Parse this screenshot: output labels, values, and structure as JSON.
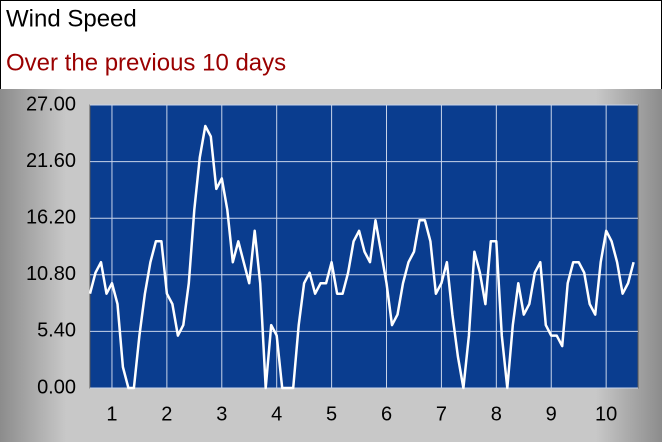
{
  "chart_data": {
    "type": "line",
    "title": "Wind Speed",
    "subtitle": "Over the previous 10 days",
    "x": [
      0.6,
      0.7,
      0.8,
      0.9,
      1.0,
      1.1,
      1.2,
      1.3,
      1.4,
      1.5,
      1.6,
      1.7,
      1.8,
      1.9,
      2.0,
      2.1,
      2.2,
      2.3,
      2.4,
      2.5,
      2.6,
      2.7,
      2.8,
      2.9,
      3.0,
      3.1,
      3.2,
      3.3,
      3.4,
      3.5,
      3.6,
      3.7,
      3.8,
      3.9,
      4.0,
      4.1,
      4.2,
      4.3,
      4.4,
      4.5,
      4.6,
      4.7,
      4.8,
      4.9,
      5.0,
      5.1,
      5.2,
      5.3,
      5.4,
      5.5,
      5.6,
      5.7,
      5.8,
      5.9,
      6.0,
      6.1,
      6.2,
      6.3,
      6.4,
      6.5,
      6.6,
      6.7,
      6.8,
      6.9,
      7.0,
      7.1,
      7.2,
      7.3,
      7.4,
      7.5,
      7.6,
      7.7,
      7.8,
      7.9,
      8.0,
      8.1,
      8.2,
      8.3,
      8.4,
      8.5,
      8.6,
      8.7,
      8.8,
      8.9,
      9.0,
      9.1,
      9.2,
      9.3,
      9.4,
      9.5,
      9.6,
      9.7,
      9.8,
      9.9,
      10.0,
      10.1,
      10.2,
      10.3,
      10.4,
      10.5
    ],
    "series": [
      {
        "color": "#ffffff",
        "values": [
          9,
          11,
          12,
          9,
          10,
          8,
          2,
          0,
          0,
          5,
          9,
          12,
          14,
          14,
          9,
          8,
          5,
          6,
          10,
          17,
          22,
          25,
          24,
          19,
          20,
          17,
          12,
          14,
          12,
          10,
          15,
          10,
          0,
          6,
          5,
          0,
          0,
          0,
          6,
          10,
          11,
          9,
          10,
          10,
          12,
          9,
          9,
          11,
          14,
          15,
          13,
          12,
          16,
          13,
          10,
          6,
          7,
          10,
          12,
          13,
          16,
          16,
          14,
          9,
          10,
          12,
          7,
          3,
          0,
          5,
          13,
          11,
          8,
          14,
          14,
          5,
          0,
          6,
          10,
          7,
          8,
          11,
          12,
          6,
          5,
          5,
          4,
          10,
          12,
          12,
          11,
          8,
          7,
          12,
          15,
          14,
          12,
          9,
          10,
          12
        ]
      }
    ],
    "xlim": [
      0.6,
      10.58
    ],
    "xticks": [
      1,
      2,
      3,
      4,
      5,
      6,
      7,
      8,
      9,
      10
    ],
    "ylim": [
      0,
      27
    ],
    "yticks": [
      {
        "value": 0,
        "label": "0.00"
      },
      {
        "value": 5.4,
        "label": "5.40"
      },
      {
        "value": 10.8,
        "label": "10.80"
      },
      {
        "value": 16.2,
        "label": "16.20"
      },
      {
        "value": 21.6,
        "label": "21.60"
      },
      {
        "value": 27,
        "label": "27.00"
      }
    ],
    "grid": true,
    "background": "#0a3d8f"
  }
}
